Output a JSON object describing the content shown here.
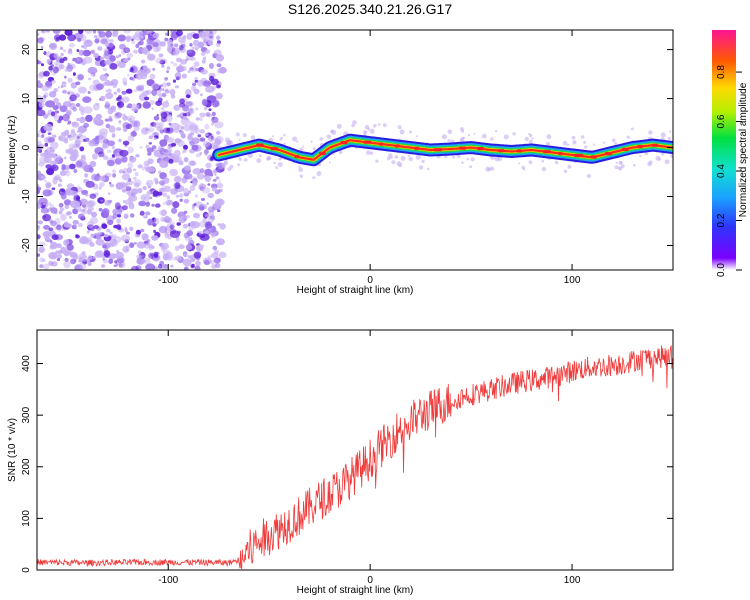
{
  "title": "S126.2025.340.21.26.G17",
  "colors": {
    "snr_line": "#f03a3a",
    "trace_core": "#ff2d1a",
    "noise_dark": "#5a1ad8",
    "noise_light": "#c6aef4"
  },
  "chart_data": [
    {
      "type": "heatmap",
      "title": "S126.2025.340.21.26.G17",
      "xlabel": "Height of straight line (km)",
      "ylabel": "Frequency (Hz)",
      "xlim": [
        -165,
        150
      ],
      "ylim": [
        -25,
        24
      ],
      "xticks": [
        -100,
        0,
        100
      ],
      "yticks": [
        -20,
        -10,
        0,
        10,
        20
      ],
      "colorbar": {
        "label": "Normalized spectral amplitude",
        "range": [
          0,
          0.97
        ],
        "ticks": [
          0.0,
          0.2,
          0.4,
          0.6,
          0.8
        ],
        "tick_labels": [
          "0.0",
          "0.2",
          "0.4",
          "0.6",
          "0.8"
        ]
      },
      "noise_region_x": [
        -165,
        -75
      ],
      "frequency_trace": {
        "x": [
          -75,
          -65,
          -55,
          -45,
          -35,
          -28,
          -20,
          -10,
          0,
          10,
          20,
          30,
          40,
          50,
          60,
          70,
          80,
          90,
          100,
          110,
          120,
          130,
          140,
          150
        ],
        "hz": [
          -1.5,
          -0.5,
          0.5,
          -0.5,
          -2.0,
          -2.5,
          0.0,
          1.5,
          1.0,
          0.5,
          0.0,
          -0.5,
          -0.3,
          0.0,
          -0.5,
          -0.8,
          -0.5,
          -1.0,
          -1.5,
          -2.0,
          -1.0,
          0.0,
          0.5,
          0.0
        ]
      }
    },
    {
      "type": "line",
      "xlabel": "Height of straight line (km)",
      "ylabel": "SNR (10 * v/v)",
      "xlim": [
        -165,
        150
      ],
      "ylim": [
        0,
        465
      ],
      "xticks": [
        -100,
        0,
        100
      ],
      "yticks": [
        0,
        100,
        200,
        300,
        400
      ],
      "series": [
        {
          "name": "SNR",
          "x": [
            -165,
            -140,
            -110,
            -85,
            -70,
            -65,
            -55,
            -45,
            -35,
            -25,
            -15,
            -5,
            5,
            15,
            25,
            35,
            45,
            55,
            65,
            75,
            85,
            95,
            105,
            115,
            125,
            135,
            150
          ],
          "y": [
            15,
            14,
            15,
            15,
            14,
            20,
            55,
            80,
            105,
            135,
            160,
            195,
            235,
            275,
            300,
            320,
            335,
            345,
            355,
            365,
            370,
            380,
            390,
            395,
            400,
            410,
            415
          ]
        }
      ]
    }
  ]
}
